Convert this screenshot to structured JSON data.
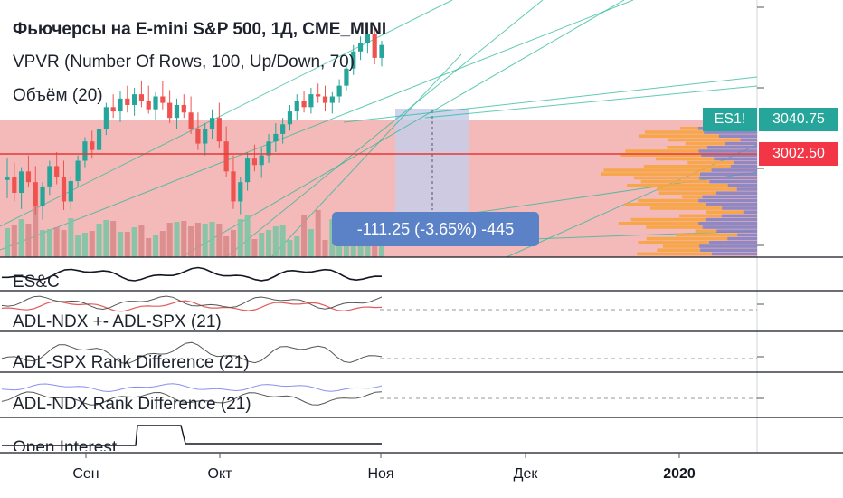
{
  "legend": {
    "title": "Фьючерсы на E-mini S&P 500, 1Д, CME_MINI",
    "vpvr": "VPVR (Number Of Rows, 100, Up/Down, 70)",
    "volume": "Объём (20)"
  },
  "price_tags": {
    "symbol": "ES1!",
    "last_price": "3040.75",
    "marked_price": "3002.50",
    "symbol_color": "#26a69a",
    "marked_color": "#f23645"
  },
  "measure": {
    "text": "-111.25 (-3.65%) -445"
  },
  "panes": [
    {
      "label": "ES&C"
    },
    {
      "label": "ADL-NDX +- ADL-SPX (21)"
    },
    {
      "label": "ADL-SPX Rank Difference (21)"
    },
    {
      "label": "ADL-NDX Rank Difference (21)"
    },
    {
      "label": "Open Interest"
    }
  ],
  "x_axis": {
    "ticks": [
      {
        "label": "Сен",
        "bold": false
      },
      {
        "label": "Окт",
        "bold": false
      },
      {
        "label": "Ноя",
        "bold": false
      },
      {
        "label": "Дек",
        "bold": false
      },
      {
        "label": "2020",
        "bold": true
      }
    ]
  },
  "colors": {
    "up": "#26a69a",
    "down": "#ef5350",
    "highlight_zone": "#f0a2a2",
    "trendline": "#2bb99a",
    "vpvr_up": "#f7a440",
    "vpvr_down": "#7c7fc4"
  },
  "chart_data": {
    "type": "candlestick",
    "symbol": "ES1!",
    "timeframe": "1Д",
    "ylim": [
      2860,
      3100
    ],
    "candles": [
      [
        2932,
        2952,
        2915,
        2935
      ],
      [
        2935,
        2948,
        2912,
        2920
      ],
      [
        2920,
        2944,
        2905,
        2940
      ],
      [
        2940,
        2955,
        2925,
        2930
      ],
      [
        2930,
        2945,
        2900,
        2908
      ],
      [
        2908,
        2930,
        2895,
        2926
      ],
      [
        2926,
        2950,
        2918,
        2945
      ],
      [
        2945,
        2958,
        2928,
        2935
      ],
      [
        2935,
        2950,
        2904,
        2912
      ],
      [
        2912,
        2936,
        2904,
        2931
      ],
      [
        2931,
        2955,
        2925,
        2950
      ],
      [
        2950,
        2972,
        2944,
        2968
      ],
      [
        2968,
        2978,
        2952,
        2960
      ],
      [
        2960,
        2985,
        2955,
        2980
      ],
      [
        2980,
        3004,
        2974,
        3000
      ],
      [
        3000,
        3012,
        2990,
        2996
      ],
      [
        2996,
        3015,
        2986,
        3008
      ],
      [
        3008,
        3020,
        2995,
        3002
      ],
      [
        3002,
        3018,
        2992,
        3012
      ],
      [
        3012,
        3025,
        3000,
        3006
      ],
      [
        3006,
        3020,
        2994,
        2998
      ],
      [
        2998,
        3014,
        2988,
        3010
      ],
      [
        3010,
        3024,
        2998,
        3004
      ],
      [
        3004,
        3016,
        2985,
        2990
      ],
      [
        2990,
        3008,
        2980,
        3002
      ],
      [
        3002,
        3012,
        2990,
        2995
      ],
      [
        2995,
        3010,
        2975,
        2980
      ],
      [
        2980,
        2995,
        2960,
        2966
      ],
      [
        2966,
        2985,
        2955,
        2980
      ],
      [
        2980,
        2998,
        2970,
        2990
      ],
      [
        2990,
        3004,
        2962,
        2968
      ],
      [
        2968,
        2982,
        2935,
        2940
      ],
      [
        2940,
        2955,
        2905,
        2912
      ],
      [
        2912,
        2935,
        2900,
        2930
      ],
      [
        2930,
        2958,
        2922,
        2952
      ],
      [
        2952,
        2965,
        2940,
        2946
      ],
      [
        2946,
        2962,
        2934,
        2955
      ],
      [
        2955,
        2975,
        2948,
        2968
      ],
      [
        2968,
        2985,
        2958,
        2975
      ],
      [
        2975,
        2990,
        2966,
        2984
      ],
      [
        2984,
        3002,
        2978,
        2996
      ],
      [
        2996,
        3012,
        2988,
        3006
      ],
      [
        3006,
        3015,
        2995,
        3000
      ],
      [
        3000,
        3018,
        2994,
        3012
      ],
      [
        3012,
        3022,
        3004,
        3010
      ],
      [
        3010,
        3020,
        2996,
        3004
      ],
      [
        3004,
        3014,
        2994,
        3010
      ],
      [
        3010,
        3026,
        3004,
        3020
      ],
      [
        3020,
        3040,
        3015,
        3036
      ],
      [
        3036,
        3058,
        3030,
        3052
      ],
      [
        3052,
        3066,
        3044,
        3060
      ],
      [
        3060,
        3072,
        3050,
        3068
      ],
      [
        3068,
        3076,
        3040,
        3046
      ],
      [
        3046,
        3062,
        3038,
        3058
      ]
    ],
    "marked_price": 3002.5,
    "last_price": 3040.75,
    "measure": {
      "change": -111.25,
      "percent": -3.65,
      "ticks": -445
    },
    "indicators": [
      "ES&C",
      "ADL-NDX +- ADL-SPX (21)",
      "ADL-SPX Rank Difference (21)",
      "ADL-NDX Rank Difference (21)",
      "Open Interest"
    ],
    "x_labels": [
      "Сен",
      "Окт",
      "Ноя",
      "Дек",
      "2020"
    ]
  }
}
